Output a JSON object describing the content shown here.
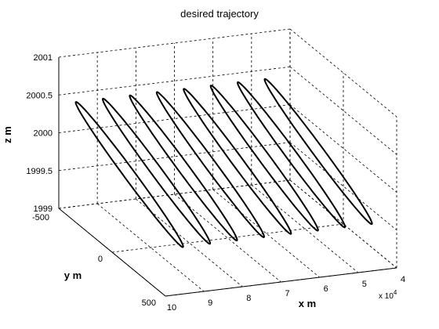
{
  "chart_data": {
    "type": "line",
    "title": "desired trajectory",
    "xlabel": "x  m",
    "ylabel": "y  m",
    "zlabel": "z  m",
    "x_exponent_base": "x 10",
    "x_exponent_power": "4",
    "xlim": [
      4,
      10
    ],
    "ylim": [
      -500,
      500
    ],
    "zlim": [
      1999,
      2001
    ],
    "x_ticks": [
      "10",
      "9",
      "8",
      "7",
      "6",
      "5",
      "4"
    ],
    "y_ticks": [
      "-500",
      "0",
      "500"
    ],
    "z_ticks": [
      "2001",
      "2000.5",
      "2000",
      "1999.5",
      "1999"
    ],
    "grid": true,
    "series": [
      {
        "loops": [
          {
            "x_center": 9.55,
            "y_amplitude": 500,
            "z_amplitude": 0.38
          },
          {
            "x_center": 8.85,
            "y_amplitude": 500,
            "z_amplitude": 0.38
          },
          {
            "x_center": 8.15,
            "y_amplitude": 500,
            "z_amplitude": 0.38
          },
          {
            "x_center": 7.45,
            "y_amplitude": 500,
            "z_amplitude": 0.38
          },
          {
            "x_center": 6.75,
            "y_amplitude": 500,
            "z_amplitude": 0.38
          },
          {
            "x_center": 6.05,
            "y_amplitude": 500,
            "z_amplitude": 0.38
          },
          {
            "x_center": 5.35,
            "y_amplitude": 500,
            "z_amplitude": 0.38
          },
          {
            "x_center": 4.65,
            "y_amplitude": 500,
            "z_amplitude": 0.38
          }
        ],
        "z_center": 2000
      }
    ]
  }
}
